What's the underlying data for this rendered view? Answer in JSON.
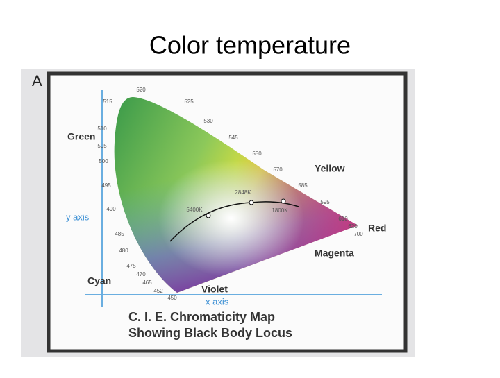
{
  "title": "Color temperature",
  "figure": {
    "panel_label": "A",
    "wavelengths": [
      "520",
      "515",
      "525",
      "530",
      "510",
      "505",
      "545",
      "500",
      "550",
      "570",
      "495",
      "585",
      "490",
      "595",
      "485",
      "610",
      "620",
      "700",
      "480",
      "475",
      "470",
      "465",
      "452",
      "450"
    ],
    "regions": [
      "Green",
      "Yellow",
      "Red",
      "Magenta",
      "Cyan",
      "Violet"
    ],
    "axes": [
      "y axis",
      "x axis"
    ],
    "temperatures": [
      "2848K",
      "5400K",
      "1800K"
    ],
    "caption": [
      "C. I. E. Chromaticity Map",
      "Showing Black Body Locus"
    ]
  }
}
